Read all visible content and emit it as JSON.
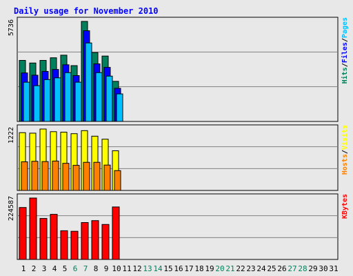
{
  "chart_data": {
    "type": "bar",
    "title": "Daily usage for November 2010",
    "days": [
      "1",
      "2",
      "3",
      "4",
      "5",
      "6",
      "7",
      "8",
      "9",
      "10",
      "11",
      "12",
      "13",
      "14",
      "15",
      "16",
      "17",
      "18",
      "19",
      "20",
      "21",
      "22",
      "23",
      "24",
      "25",
      "26",
      "27",
      "28",
      "29",
      "30",
      "31"
    ],
    "weekend_days": [
      6,
      7,
      13,
      14,
      20,
      21,
      27,
      28
    ],
    "panels": [
      {
        "ylabel_parts": [
          "Hits",
          "/",
          "Files",
          "/",
          "Pages"
        ],
        "ymax_label": "5736",
        "ymax": 5736,
        "series": [
          {
            "name": "Hits",
            "values": [
              3500,
              3350,
              3500,
              3650,
              3800,
              3200,
              5736,
              3950,
              3750,
              2300
            ]
          },
          {
            "name": "Files",
            "values": [
              2780,
              2650,
              2870,
              2980,
              3250,
              2630,
              5200,
              3300,
              3100,
              1900
            ]
          },
          {
            "name": "Pages",
            "values": [
              2250,
              2050,
              2400,
              2500,
              2800,
              2250,
              4500,
              2800,
              2600,
              1580
            ]
          }
        ]
      },
      {
        "ylabel_parts": [
          "Hosts",
          "/",
          "Visits"
        ],
        "ymax_label": "1222",
        "ymax": 1222,
        "series": [
          {
            "name": "Visits",
            "values": [
              1150,
              1140,
              1222,
              1170,
              1160,
              1130,
              1190,
              1080,
              1020,
              790
            ]
          },
          {
            "name": "Hosts",
            "values": [
              570,
              580,
              575,
              585,
              540,
              500,
              560,
              560,
              505,
              395
            ]
          }
        ]
      },
      {
        "ylabel_parts": [
          "KBytes"
        ],
        "ymax_label": "224587",
        "ymax": 224587,
        "series": [
          {
            "name": "KBytes",
            "values": [
              190000,
              224587,
              150000,
              165000,
              105000,
              103000,
              135000,
              142000,
              128000,
              192000
            ]
          }
        ]
      }
    ],
    "colors": {
      "Hits": "#00805c",
      "Files": "#0000ff",
      "Pages": "#00c0ff",
      "Visits": "#ffff00",
      "Hosts": "#ff8000",
      "KBytes": "#ff0000",
      "title": "#0000ff",
      "weekend": "#00805c",
      "weekday": "#000000",
      "slash": "#000000",
      "background": "#e8e8e8",
      "grid": "#808080"
    }
  }
}
